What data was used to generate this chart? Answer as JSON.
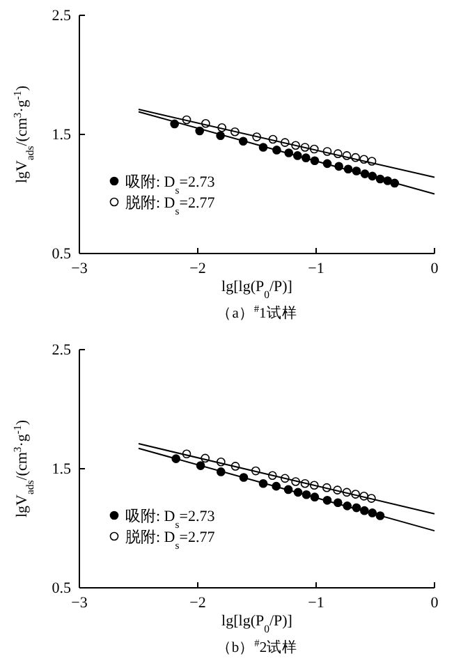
{
  "chart_data": [
    {
      "type": "scatter",
      "xlabel": "lg[lg(P$_{0}$/P)]",
      "ylabel": "lgV$_{ads}$/(cm$^{3}$·g$^{-1}$)",
      "annotations": [
        "（a）$^{#}$1试样"
      ],
      "xlim": [
        -3,
        0
      ],
      "ylim": [
        0.5,
        2.5
      ],
      "xticks": [
        {
          "value": -3,
          "label": "−3"
        },
        {
          "value": -2,
          "label": "−2"
        },
        {
          "value": -1,
          "label": "−1"
        },
        0
      ],
      "yticks": [
        0.5,
        1.5,
        2.5
      ],
      "legend": "bottom left",
      "grid": false,
      "series": [
        {
          "name": "吸附: D$_{s}$=2.73",
          "color": "#000000",
          "marker": "circle",
          "x": [
            -2.196,
            -1.984,
            -1.808,
            -1.616,
            -1.447,
            -1.333,
            -1.231,
            -1.157,
            -1.086,
            -1.012,
            -0.906,
            -0.808,
            -0.729,
            -0.659,
            -0.588,
            -0.525,
            -0.459,
            -0.396,
            -0.337
          ],
          "values": [
            1.588,
            1.529,
            1.49,
            1.443,
            1.392,
            1.369,
            1.345,
            1.322,
            1.303,
            1.279,
            1.255,
            1.232,
            1.209,
            1.193,
            1.169,
            1.15,
            1.126,
            1.111,
            1.091
          ]
        },
        {
          "name": "脱附: D$_{s}$=2.77",
          "color": "#ffffff",
          "marker": "circle",
          "x": [
            -2.094,
            -1.933,
            -1.796,
            -1.686,
            -1.502,
            -1.365,
            -1.263,
            -1.173,
            -1.094,
            -1.016,
            -0.906,
            -0.816,
            -0.741,
            -0.667,
            -0.596,
            -0.529
          ],
          "values": [
            1.623,
            1.592,
            1.557,
            1.522,
            1.479,
            1.459,
            1.432,
            1.408,
            1.392,
            1.377,
            1.357,
            1.338,
            1.322,
            1.306,
            1.291,
            1.275
          ]
        },
        {
          "type": "line",
          "color": "#000000",
          "marker": "none",
          "x": [
            -2.5,
            0
          ],
          "values": [
            1.69,
            1.0
          ]
        },
        {
          "type": "line",
          "color": "#000000",
          "marker": "none",
          "x": [
            -2.5,
            0
          ],
          "values": [
            1.71,
            1.14
          ]
        }
      ]
    },
    {
      "type": "scatter",
      "xlabel": "lg[lg(P$_{0}$/P)]",
      "ylabel": "lgV$_{ads}$/(cm$^{3}$·g$^{-1}$)",
      "annotations": [
        "（b）$^{#}$2试样"
      ],
      "xlim": [
        -3,
        0
      ],
      "ylim": [
        0.5,
        2.5
      ],
      "xticks": [
        {
          "value": -3,
          "label": "−3"
        },
        {
          "value": -2,
          "label": "−2"
        },
        {
          "value": -1,
          "label": "−1"
        },
        0
      ],
      "yticks": [
        0.5,
        1.5,
        2.5
      ],
      "legend": "bottom left",
      "grid": false,
      "series": [
        {
          "name": "吸附: D$_{s}$=2.73",
          "color": "#000000",
          "marker": "circle",
          "x": [
            -2.184,
            -1.976,
            -1.804,
            -1.612,
            -1.447,
            -1.337,
            -1.235,
            -1.153,
            -1.082,
            -1.012,
            -0.906,
            -0.816,
            -0.737,
            -0.659,
            -0.592,
            -0.525,
            -0.459
          ],
          "values": [
            1.584,
            1.526,
            1.474,
            1.427,
            1.376,
            1.353,
            1.325,
            1.302,
            1.282,
            1.262,
            1.235,
            1.215,
            1.188,
            1.172,
            1.148,
            1.129,
            1.105
          ]
        },
        {
          "name": "脱附: D$_{s}$=2.77",
          "color": "#ffffff",
          "marker": "circle",
          "x": [
            -2.094,
            -1.937,
            -1.804,
            -1.682,
            -1.51,
            -1.369,
            -1.263,
            -1.173,
            -1.094,
            -1.016,
            -0.91,
            -0.82,
            -0.741,
            -0.667,
            -0.596,
            -0.533
          ],
          "values": [
            1.624,
            1.588,
            1.557,
            1.521,
            1.482,
            1.443,
            1.419,
            1.392,
            1.376,
            1.361,
            1.341,
            1.321,
            1.302,
            1.286,
            1.27,
            1.251
          ]
        },
        {
          "type": "line",
          "color": "#000000",
          "marker": "none",
          "x": [
            -2.5,
            0
          ],
          "values": [
            1.671,
            0.979
          ]
        },
        {
          "type": "line",
          "color": "#000000",
          "marker": "none",
          "x": [
            -2.5,
            0
          ],
          "values": [
            1.71,
            1.121
          ]
        }
      ]
    }
  ]
}
